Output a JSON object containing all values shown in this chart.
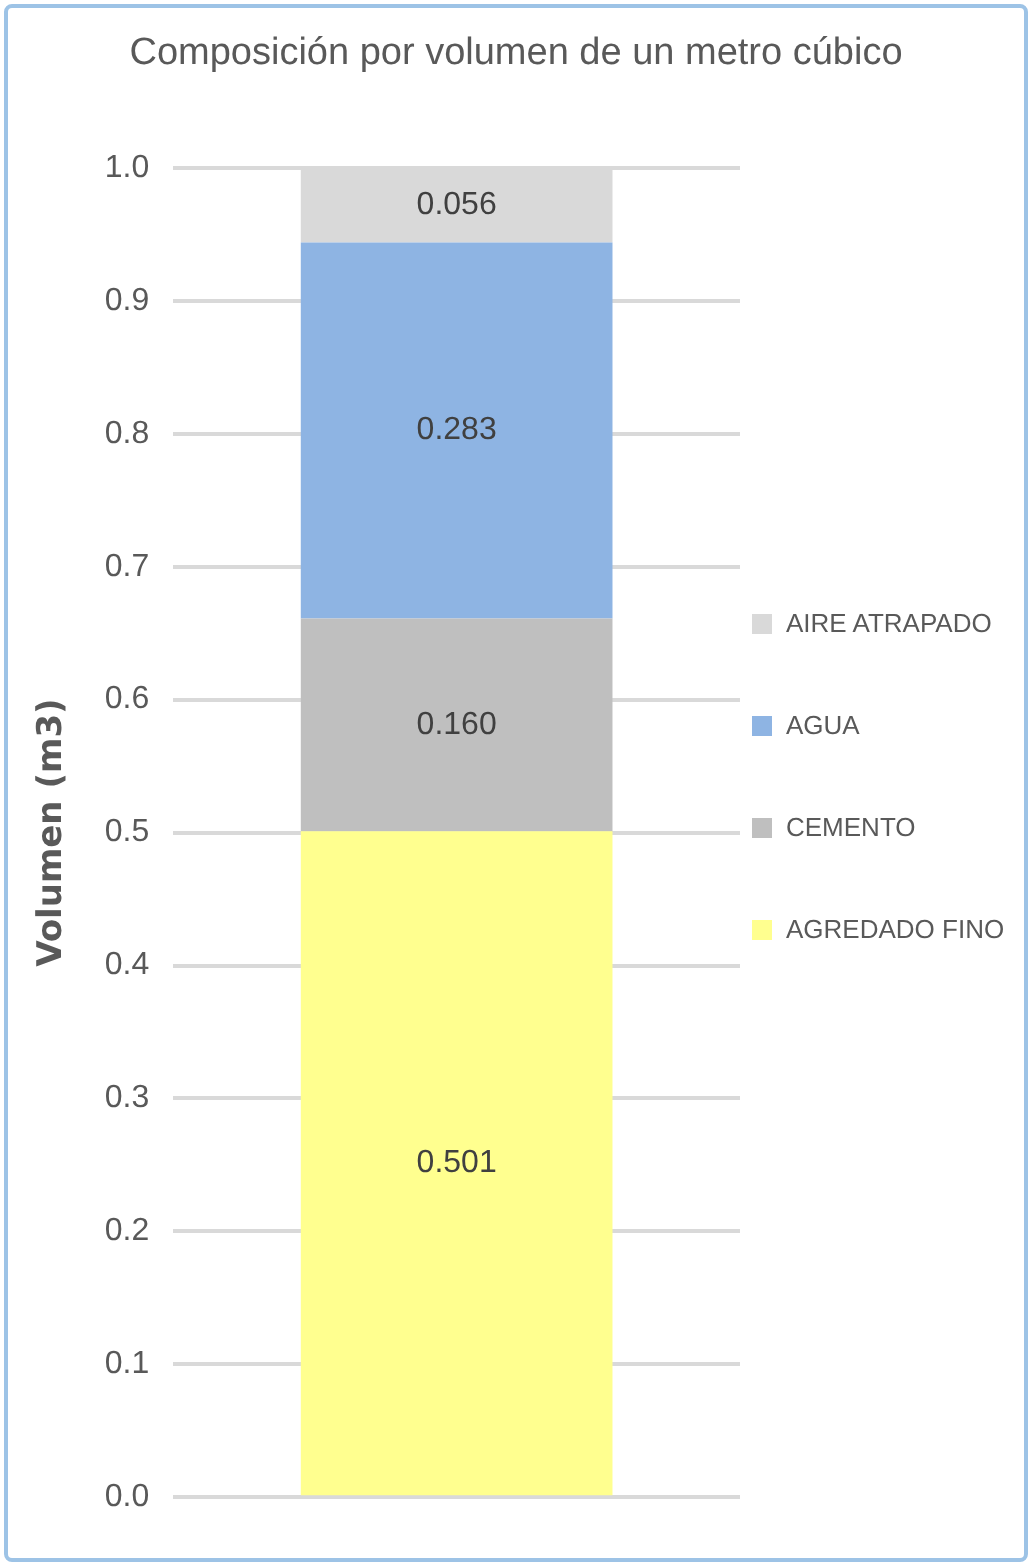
{
  "chart_data": {
    "type": "bar",
    "title": "Composición por volumen de un metro cúbico",
    "ylabel": "Volumen (m3)",
    "categories": [
      null
    ],
    "stacked": true,
    "ylim": [
      0,
      1.0
    ],
    "yticks": [
      {
        "value": 0,
        "label": "0.0"
      },
      {
        "value": 0.1,
        "label": "0.1"
      },
      {
        "value": 0.2,
        "label": "0.2"
      },
      {
        "value": 0.3,
        "label": "0.3"
      },
      {
        "value": 0.4,
        "label": "0.4"
      },
      {
        "value": 0.5,
        "label": "0.5"
      },
      {
        "value": 0.6,
        "label": "0.6"
      },
      {
        "value": 0.7,
        "label": "0.7"
      },
      {
        "value": 0.8,
        "label": "0.8"
      },
      {
        "value": 0.9,
        "label": "0.9"
      },
      {
        "value": 1.0,
        "label": "1.0"
      }
    ],
    "grid": "y",
    "legend": "right",
    "series": [
      {
        "name": "AGREDADO FINO",
        "color": "#ffff8f",
        "values": [
          0.501
        ],
        "value_labels": [
          "0.501"
        ]
      },
      {
        "name": "CEMENTO",
        "color": "#bfbfbf",
        "values": [
          0.16
        ],
        "value_labels": [
          "0.160"
        ]
      },
      {
        "name": "AGUA",
        "color": "#8eb4e3",
        "values": [
          0.283
        ],
        "value_labels": [
          "0.283"
        ]
      },
      {
        "name": "AIRE ATRAPADO",
        "color": "#d9d9d9",
        "values": [
          0.056
        ],
        "value_labels": [
          "0.056"
        ]
      }
    ]
  }
}
